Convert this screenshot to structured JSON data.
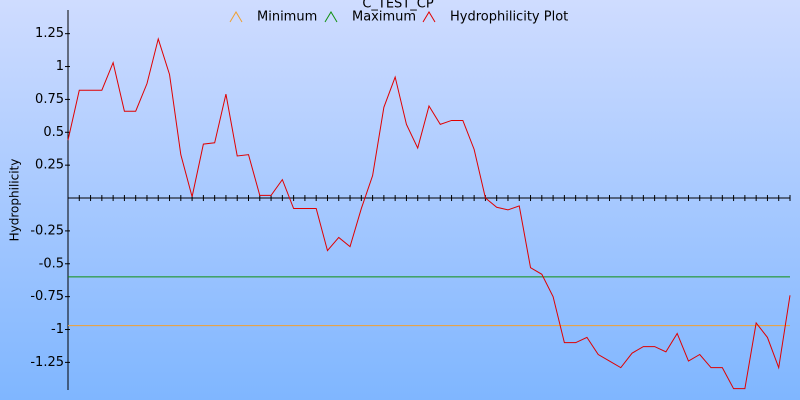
{
  "chart_data": {
    "type": "line",
    "title": "C_TEST_CP",
    "ylabel": "Hydrophilicity",
    "x": [
      1,
      2,
      3,
      4,
      5,
      6,
      7,
      8,
      9,
      10,
      11,
      12,
      13,
      14,
      15,
      16,
      17,
      18,
      19,
      20,
      21,
      22,
      23,
      24,
      25,
      26,
      27,
      28,
      29,
      30,
      31,
      32,
      33,
      34,
      35,
      36,
      37,
      38,
      39,
      40,
      41,
      42,
      43,
      44,
      45,
      46,
      47,
      48,
      49,
      50,
      51,
      52,
      53,
      54,
      55,
      56,
      57,
      58,
      59,
      60,
      61,
      62,
      63,
      64,
      65
    ],
    "xlim": [
      1,
      65
    ],
    "xticks": [
      1,
      2,
      3,
      4,
      5,
      6,
      7,
      8,
      9,
      10,
      11,
      12,
      13,
      14,
      15,
      16,
      17,
      18,
      19,
      20,
      21,
      22,
      23,
      24,
      25,
      26,
      27,
      28,
      29,
      30,
      31,
      32,
      33,
      34,
      35,
      36,
      37,
      38,
      39,
      40,
      41,
      42,
      43,
      44,
      45,
      46,
      47,
      48,
      49,
      50,
      51,
      52,
      53,
      54,
      55,
      56,
      57,
      58,
      59,
      60,
      61,
      62,
      63,
      64,
      65
    ],
    "ylim": [
      -1.46,
      1.43
    ],
    "yticks": [
      1.25,
      1,
      0.75,
      0.5,
      0.25,
      -0.25,
      -0.5,
      -0.75,
      -1,
      -1.25
    ],
    "series": [
      {
        "name": "Minimum",
        "color": "#f0a030",
        "value": -0.97
      },
      {
        "name": "Maximum",
        "color": "#109010",
        "value": -0.6
      },
      {
        "name": "Hydrophilicity Plot",
        "color": "#e00000",
        "values": [
          0.44,
          0.82,
          0.82,
          0.82,
          1.03,
          0.66,
          0.66,
          0.87,
          1.21,
          0.94,
          0.33,
          0.01,
          0.41,
          0.42,
          0.79,
          0.32,
          0.33,
          0.02,
          0.02,
          0.14,
          -0.08,
          -0.08,
          -0.08,
          -0.4,
          -0.3,
          -0.37,
          -0.08,
          0.17,
          0.69,
          0.92,
          0.56,
          0.38,
          0.7,
          0.56,
          0.59,
          0.59,
          0.37,
          0.0,
          -0.07,
          -0.09,
          -0.06,
          -0.53,
          -0.58,
          -0.75,
          -1.1,
          -1.1,
          -1.06,
          -1.19,
          -1.24,
          -1.29,
          -1.18,
          -1.13,
          -1.13,
          -1.17,
          -1.03,
          -1.24,
          -1.19,
          -1.29,
          -1.29,
          -1.45,
          -1.45,
          -0.95,
          -1.06,
          -1.29,
          -0.74
        ]
      }
    ]
  }
}
